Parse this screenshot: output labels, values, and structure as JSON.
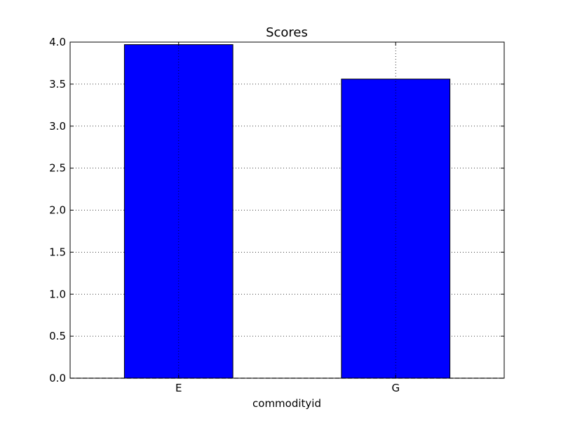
{
  "chart_data": {
    "type": "bar",
    "title": "Scores",
    "xlabel": "commodityid",
    "ylabel": "",
    "categories": [
      "E",
      "G"
    ],
    "values": [
      3.97,
      3.56
    ],
    "ylim": [
      0,
      4.0
    ],
    "yticks": [
      "0.0",
      "0.5",
      "1.0",
      "1.5",
      "2.0",
      "2.5",
      "3.0",
      "3.5",
      "4.0"
    ],
    "grid": true,
    "legend": "none",
    "bar_color": "#0000ff",
    "edge_color": "#000000"
  }
}
